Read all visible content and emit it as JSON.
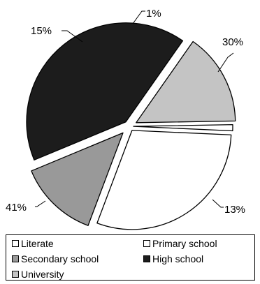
{
  "chart_data": {
    "type": "pie",
    "categories": [
      "Literate",
      "Primary school",
      "Secondary school",
      "High school",
      "University"
    ],
    "values": [
      1,
      30,
      13,
      41,
      15
    ],
    "labels": [
      "1%",
      "30%",
      "13%",
      "41%",
      "15%"
    ],
    "colors": [
      "#ffffff",
      "#ffffff",
      "#999999",
      "#1c1c1c",
      "#c4c4c4"
    ],
    "exploded": true,
    "legend_position": "bottom",
    "title": "",
    "xlabel": "",
    "ylabel": ""
  },
  "legend": {
    "items": [
      {
        "label": "Literate",
        "color": "#ffffff"
      },
      {
        "label": "Primary school",
        "color": "#ffffff"
      },
      {
        "label": "Secondary school",
        "color": "#999999"
      },
      {
        "label": "High school",
        "color": "#1c1c1c"
      },
      {
        "label": "University",
        "color": "#c4c4c4"
      }
    ]
  }
}
